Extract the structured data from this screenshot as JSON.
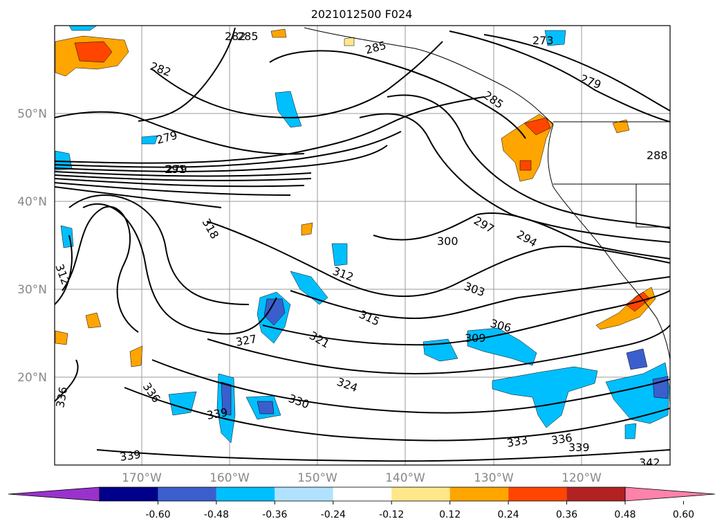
{
  "title": "2021012500 F024",
  "lat_labels": [
    "50°N",
    "40°N",
    "30°N",
    "20°N"
  ],
  "lon_labels": [
    "170°W",
    "160°W",
    "150°W",
    "140°W",
    "130°W",
    "120°W"
  ],
  "contour_labels": [
    "285",
    "282",
    "285",
    "282",
    "279",
    "273",
    "279",
    "285",
    "291",
    "279",
    "288",
    "318",
    "300",
    "297",
    "294",
    "312",
    "312",
    "303",
    "315",
    "306",
    "321",
    "309",
    "327",
    "324",
    "336",
    "336",
    "330",
    "339",
    "333",
    "336",
    "339",
    "339",
    "342"
  ],
  "colorbar": {
    "ticks": [
      "-0.60",
      "-0.48",
      "-0.36",
      "-0.24",
      "-0.12",
      "0.12",
      "0.24",
      "0.36",
      "0.48",
      "0.60"
    ],
    "colors": [
      "#9932cc",
      "#00008b",
      "#3a5fcd",
      "#00bfff",
      "#b0e2ff",
      "#ffffff",
      "#ffe78a",
      "#ffa500",
      "#ff4500",
      "#b22222",
      "#ff82ab"
    ]
  }
}
